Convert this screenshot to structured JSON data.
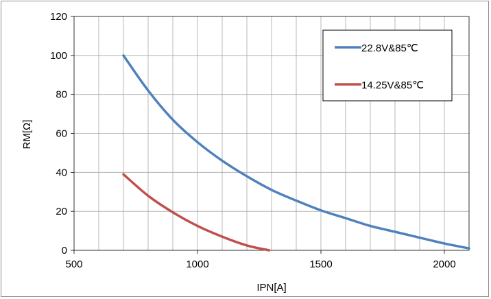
{
  "chart_data": {
    "type": "line",
    "title": "",
    "xlabel": "IPN[A]",
    "ylabel": "RM[Ω]",
    "xlim": [
      500,
      2100
    ],
    "ylim": [
      0,
      120
    ],
    "x_ticks": [
      "500",
      "1000",
      "1500",
      "2000"
    ],
    "y_ticks": [
      "0",
      "20",
      "40",
      "60",
      "80",
      "100",
      "120"
    ],
    "grid": true,
    "legend_position": "top-right",
    "series": [
      {
        "name": "22.8V&85℃",
        "color": "#4f81bd",
        "x": [
          700,
          800,
          900,
          1000,
          1100,
          1200,
          1300,
          1400,
          1500,
          1600,
          1700,
          1800,
          1900,
          2000,
          2100
        ],
        "y": [
          100,
          82,
          67,
          55.5,
          46,
          38,
          31,
          25.5,
          20.5,
          16.5,
          12.5,
          9.5,
          6.5,
          3.5,
          1
        ]
      },
      {
        "name": "14.25V&85℃",
        "color": "#c0504d",
        "x": [
          700,
          800,
          900,
          1000,
          1100,
          1200,
          1290
        ],
        "y": [
          39,
          28,
          19.5,
          12.5,
          7,
          2.5,
          0
        ]
      }
    ]
  }
}
